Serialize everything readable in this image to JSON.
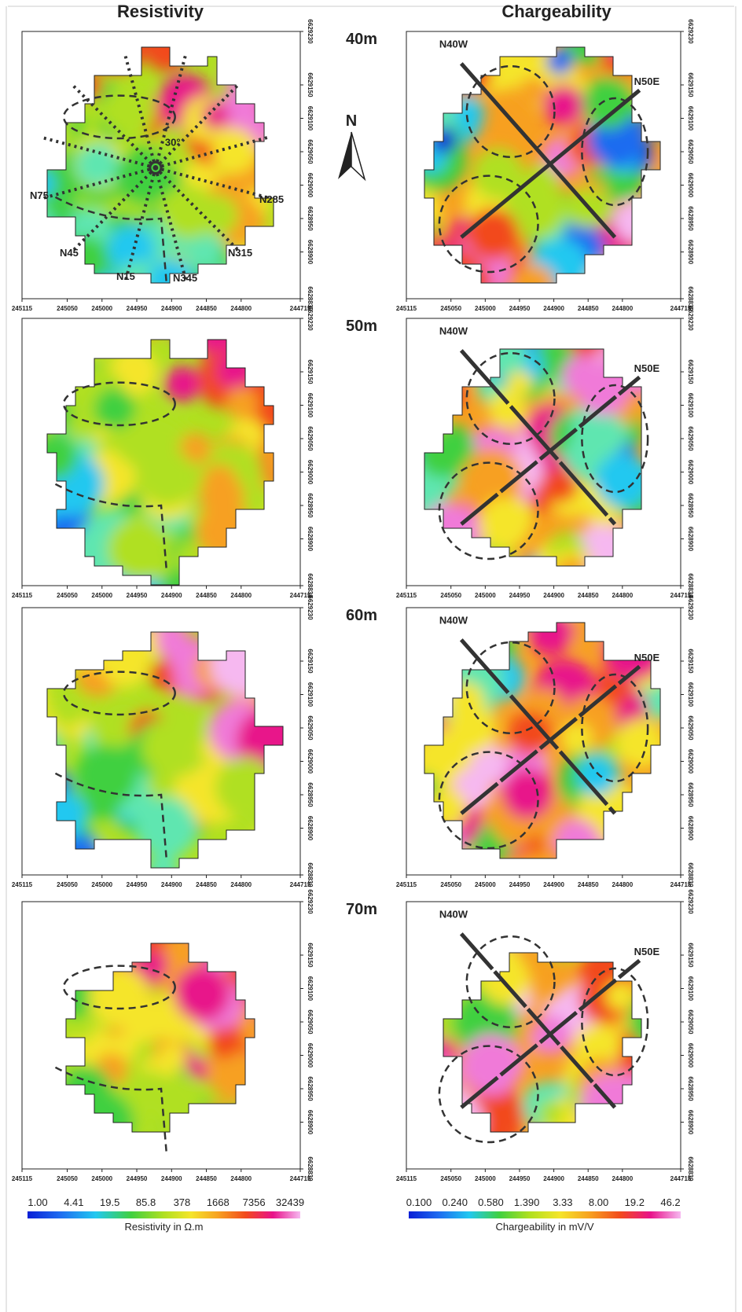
{
  "columns": [
    "Resistivity",
    "Chargeability"
  ],
  "depths": [
    "40m",
    "50m",
    "60m",
    "70m"
  ],
  "x_ticks": [
    245115,
    245050,
    245000,
    244950,
    244900,
    244850,
    244800,
    244715
  ],
  "y_ticks": [
    6629230,
    6629150,
    6629100,
    6629050,
    6629000,
    6628950,
    6628900,
    6628830
  ],
  "north": "N",
  "profile_labels": [
    "N75",
    "N45",
    "N15",
    "N345",
    "N315",
    "N285"
  ],
  "angle_label": "30°",
  "lineaments": [
    "N40W",
    "N50E"
  ],
  "legends": [
    {
      "labels": [
        "1.00",
        "4.41",
        "19.5",
        "85.8",
        "378",
        "1668",
        "7356",
        "32439"
      ],
      "title": "Resistivity in Ω.m"
    },
    {
      "labels": [
        "0.100",
        "0.240",
        "0.580",
        "1.390",
        "3.33",
        "8.00",
        "19.2",
        "46.2"
      ],
      "title": "Chargeability in mV/V"
    }
  ]
}
